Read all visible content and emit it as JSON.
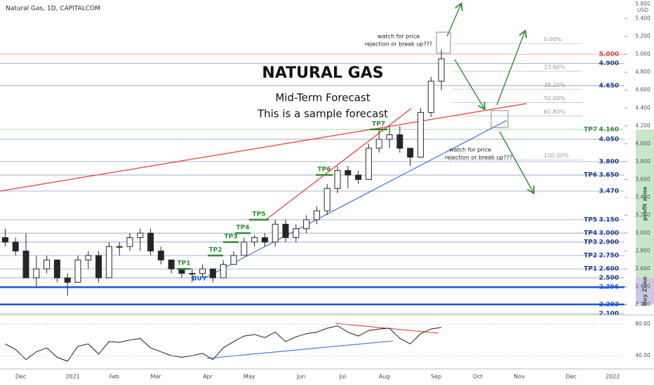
{
  "chart_data": [
    {
      "type": "candlestick",
      "header": "Natural Gas, 1D, CAPITALCOM",
      "title": "NATURAL GAS",
      "subtitle": "Mid-Term Forecast",
      "note": "This is a sample forecast",
      "currency": "USD",
      "scale_top_label": "5.800",
      "buy_label": "BUY",
      "color": "#262626",
      "categories": [
        null,
        null,
        "Dec",
        null,
        null,
        null,
        null,
        "2021",
        null,
        null,
        null,
        "Feb",
        null,
        null,
        null,
        "Mar",
        null,
        null,
        null,
        null,
        "Apr",
        null,
        null,
        null,
        "May",
        null,
        null,
        null,
        null,
        "Jun",
        null,
        null,
        null,
        "Jul",
        null,
        null,
        null,
        "Aug",
        null,
        null,
        null,
        null,
        "Sep",
        null,
        null,
        null,
        "Oct",
        null,
        null,
        null,
        "Nov",
        null,
        null,
        null,
        null,
        "Dec",
        null,
        null,
        null,
        "2022"
      ],
      "ohlc": {
        "open": [
          2.95,
          2.9,
          2.8,
          2.5,
          2.6,
          2.7,
          2.5,
          2.45,
          2.7,
          2.75,
          2.5,
          2.85,
          2.85,
          2.95,
          3.0,
          2.8,
          2.7,
          2.6,
          2.55,
          2.55,
          2.6,
          2.5,
          2.65,
          2.75,
          2.9,
          2.95,
          2.9,
          3.1,
          2.95,
          3.05,
          3.15,
          3.25,
          3.5,
          3.7,
          3.65,
          3.6,
          3.95,
          4.05,
          4.1,
          3.95,
          3.85,
          4.35,
          4.7,
          null,
          null,
          null,
          null,
          null,
          null,
          null,
          null,
          null,
          null,
          null,
          null,
          null,
          null,
          null,
          null,
          null
        ],
        "high": [
          3.05,
          2.95,
          3.0,
          2.75,
          2.75,
          2.7,
          2.55,
          2.75,
          2.8,
          2.8,
          2.9,
          2.9,
          3.0,
          3.05,
          3.05,
          2.85,
          2.7,
          2.6,
          2.6,
          2.65,
          2.6,
          2.7,
          2.8,
          2.95,
          2.98,
          3.0,
          3.15,
          3.15,
          3.1,
          3.2,
          3.3,
          3.55,
          3.75,
          3.75,
          3.7,
          4.0,
          4.15,
          4.2,
          4.2,
          3.95,
          4.4,
          4.75,
          5.05,
          null,
          null,
          null,
          null,
          null,
          null,
          null,
          null,
          null,
          null,
          null,
          null,
          null,
          null,
          null,
          null,
          null
        ],
        "low": [
          2.85,
          2.75,
          2.5,
          2.4,
          2.55,
          2.45,
          2.3,
          2.45,
          2.6,
          2.45,
          2.5,
          2.75,
          2.8,
          2.8,
          2.75,
          2.65,
          2.55,
          2.5,
          2.45,
          2.5,
          2.45,
          2.5,
          2.65,
          2.75,
          2.85,
          2.85,
          2.85,
          2.9,
          2.9,
          3.0,
          3.1,
          3.2,
          3.45,
          3.5,
          3.55,
          3.6,
          3.9,
          3.95,
          3.9,
          3.75,
          3.85,
          4.3,
          4.6,
          null,
          null,
          null,
          null,
          null,
          null,
          null,
          null,
          null,
          null,
          null,
          null,
          null,
          null,
          null,
          null,
          null
        ],
        "close": [
          2.9,
          2.8,
          2.5,
          2.6,
          2.7,
          2.5,
          2.45,
          2.7,
          2.75,
          2.5,
          2.85,
          2.85,
          2.95,
          3.0,
          2.8,
          2.7,
          2.6,
          2.55,
          2.55,
          2.6,
          2.5,
          2.65,
          2.75,
          2.9,
          2.95,
          2.9,
          3.1,
          2.95,
          3.05,
          3.15,
          3.25,
          3.5,
          3.7,
          3.65,
          3.6,
          3.95,
          4.05,
          4.1,
          3.95,
          3.85,
          4.35,
          4.7,
          4.95,
          null,
          null,
          null,
          null,
          null,
          null,
          null,
          null,
          null,
          null,
          null,
          null,
          null,
          null,
          null,
          null,
          null
        ]
      },
      "ylim": [
        2.1,
        5.6
      ],
      "yticks": [
        {
          "value": 5.4,
          "label": "5.400"
        },
        {
          "value": 5.2,
          "label": "5.200"
        },
        {
          "value": 5.0,
          "label": "5.000"
        },
        {
          "value": 4.8,
          "label": "4.800"
        },
        {
          "value": 4.6,
          "label": "4.600"
        },
        {
          "value": 4.4,
          "label": "4.400"
        },
        {
          "value": 4.2,
          "label": "4.200"
        },
        {
          "value": 4.0,
          "label": "4.000"
        },
        {
          "value": 3.8,
          "label": "3.800"
        },
        {
          "value": 3.6,
          "label": "3.600"
        },
        {
          "value": 3.4,
          "label": "3.400"
        },
        {
          "value": 3.2,
          "label": "3.200"
        },
        {
          "value": 3.0,
          "label": "3.000"
        },
        {
          "value": 2.8,
          "label": "2.800"
        },
        {
          "value": 2.6,
          "label": "2.600"
        },
        {
          "value": 2.4,
          "label": "2.400"
        },
        {
          "value": 2.2,
          "label": "2.200"
        }
      ],
      "levels": [
        {
          "value": 5.0,
          "label": "5.000",
          "color": "#e53935"
        },
        {
          "value": 4.9,
          "label": "4.900",
          "color": "#1a3a8f"
        },
        {
          "value": 4.65,
          "label": "4.650",
          "color": "#1a3a8f"
        },
        {
          "name": "TP7",
          "value": 4.16,
          "label": "4.160",
          "color": "#2e8b2e"
        },
        {
          "value": 4.05,
          "label": "4.050",
          "color": "#1a3a8f"
        },
        {
          "value": 3.8,
          "label": "3.800",
          "color": "#1a3a8f"
        },
        {
          "name": "TP6",
          "value": 3.65,
          "label": "3.650",
          "color": "#1a3a8f"
        },
        {
          "value": 3.47,
          "label": "3.470",
          "color": "#1a3a8f"
        },
        {
          "name": "TP5",
          "value": 3.15,
          "label": "3.150",
          "color": "#1a3a8f"
        },
        {
          "name": "TP4",
          "value": 3.0,
          "label": "3.000",
          "color": "#1a3a8f"
        },
        {
          "name": "TP3",
          "value": 2.9,
          "label": "2.900",
          "color": "#1a3a8f"
        },
        {
          "name": "TP2",
          "value": 2.75,
          "label": "2.750",
          "color": "#1a3a8f"
        },
        {
          "name": "TP1",
          "value": 2.6,
          "label": "2.600",
          "color": "#1a3a8f"
        },
        {
          "value": 2.5,
          "label": "2.500",
          "color": "#1a3a8f"
        },
        {
          "value": 2.396,
          "label": "2.396",
          "color": "#1a56db",
          "thick": true
        },
        {
          "value": 2.203,
          "label": "2.203",
          "color": "#1a56db",
          "thick": true
        },
        {
          "value": 2.1,
          "label": "2.100",
          "color": "#1a3a8f"
        }
      ],
      "fib": [
        {
          "label": "0.00%",
          "value": 5.12
        },
        {
          "label": "23.60%",
          "value": 4.81
        },
        {
          "label": "38.20%",
          "value": 4.61
        },
        {
          "label": "50.00%",
          "value": 4.46
        },
        {
          "label": "61.80%",
          "value": 4.31
        },
        {
          "label": "100.00%",
          "value": 3.82
        }
      ],
      "zones": [
        {
          "label": "profit zone",
          "from": 4.16,
          "to": 2.5,
          "color": "#c8e6c9"
        },
        {
          "label": "Buy Zone",
          "from": 2.5,
          "to": 2.203,
          "color": "#d1c4e9"
        }
      ],
      "annotations": [
        [
          "watch for price",
          "rejection or break up???"
        ],
        [
          "watch for price",
          "rejection or break up???"
        ]
      ]
    },
    {
      "type": "line",
      "color": "#1a1a1a",
      "values": [
        55,
        48,
        35,
        45,
        50,
        38,
        33,
        52,
        55,
        42,
        58,
        57,
        60,
        62,
        50,
        45,
        40,
        38,
        40,
        43,
        35,
        50,
        58,
        65,
        67,
        63,
        70,
        58,
        64,
        68,
        70,
        75,
        78,
        70,
        65,
        72,
        74,
        75,
        62,
        55,
        68,
        74,
        76,
        null,
        null,
        null,
        null,
        null,
        null,
        null,
        null,
        null,
        null,
        null,
        null,
        null,
        null,
        null,
        null,
        null
      ],
      "ylim": [
        25,
        90
      ],
      "yticks": [
        {
          "value": 80,
          "label": "80.00"
        },
        {
          "value": 40,
          "label": "40.00"
        }
      ]
    }
  ]
}
